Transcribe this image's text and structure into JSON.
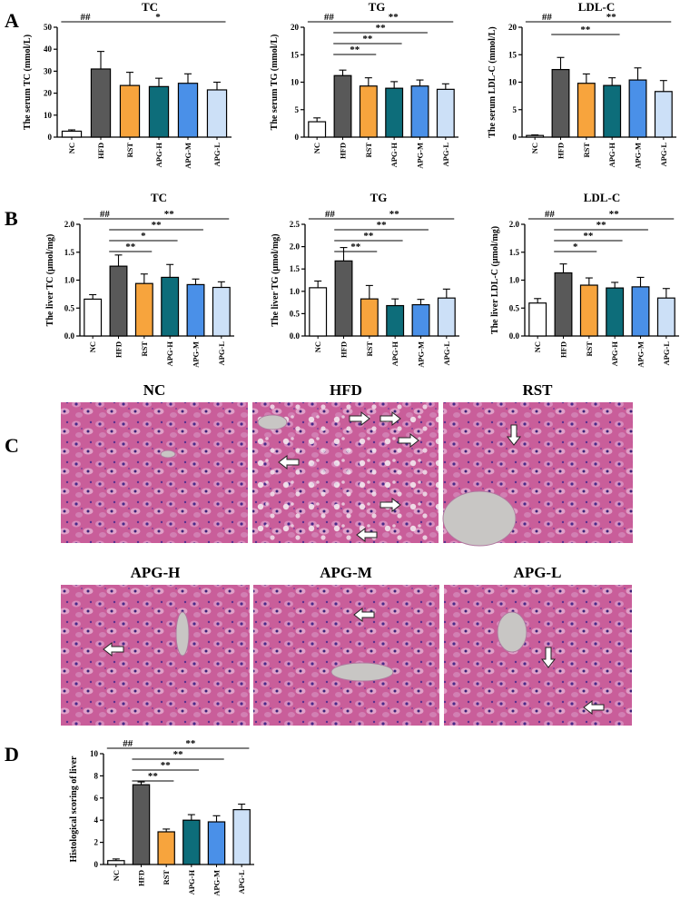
{
  "panels": [
    {
      "letter": "A"
    },
    {
      "letter": "B"
    },
    {
      "letter": "C"
    },
    {
      "letter": "D"
    }
  ],
  "colors": {
    "NC": "#ffffff",
    "HFD": "#595959",
    "RST": "#f7a43d",
    "APG-H": "#0d6d7a",
    "APG-M": "#4a90e8",
    "APG-L": "#cce0f7"
  },
  "chart_data": [
    {
      "type": "bar",
      "panel": "A",
      "title": "TC",
      "ylabel": "The serum TC (mmol/L)",
      "categories": [
        "NC",
        "HFD",
        "RST",
        "APG-H",
        "APG-M",
        "APG-L"
      ],
      "values": [
        2.7,
        31.0,
        23.5,
        23.0,
        24.5,
        21.5
      ],
      "errors": [
        0.6,
        8.0,
        6.0,
        3.8,
        4.3,
        3.5
      ],
      "ylim": [
        0,
        50
      ],
      "yticks": [
        "0",
        "10",
        "20",
        "30",
        "40",
        "50"
      ],
      "significance": [
        {
          "from": 0,
          "to": 1,
          "label": "##"
        },
        {
          "from": 1,
          "to": 5,
          "label": "*"
        }
      ]
    },
    {
      "type": "bar",
      "panel": "A",
      "title": "TG",
      "ylabel": "The serum TG (mmol/L)",
      "categories": [
        "NC",
        "HFD",
        "RST",
        "APG-H",
        "APG-M",
        "APG-L"
      ],
      "values": [
        2.8,
        11.2,
        9.3,
        8.9,
        9.3,
        8.7
      ],
      "errors": [
        0.7,
        1.0,
        1.5,
        1.2,
        1.1,
        1.0
      ],
      "ylim": [
        0,
        20
      ],
      "yticks": [
        "0",
        "5",
        "10",
        "15",
        "20"
      ],
      "significance": [
        {
          "from": 0,
          "to": 1,
          "label": "##"
        },
        {
          "from": 1,
          "to": 5,
          "label": "**"
        },
        {
          "from": 1,
          "to": 4,
          "label": "**"
        },
        {
          "from": 1,
          "to": 3,
          "label": "**"
        },
        {
          "from": 1,
          "to": 2,
          "label": "**"
        }
      ]
    },
    {
      "type": "bar",
      "panel": "A",
      "title": "LDL-C",
      "ylabel": "The serum LDL-C (mmol/L)",
      "categories": [
        "NC",
        "HFD",
        "RST",
        "APG-H",
        "APG-M",
        "APG-L"
      ],
      "values": [
        0.3,
        12.3,
        9.8,
        9.4,
        10.4,
        8.3
      ],
      "errors": [
        0.1,
        2.2,
        1.7,
        1.4,
        2.2,
        2.0
      ],
      "ylim": [
        0,
        20
      ],
      "yticks": [
        "0",
        "5",
        "10",
        "15",
        "20"
      ],
      "significance": [
        {
          "from": 0,
          "to": 1,
          "label": "##"
        },
        {
          "from": 1,
          "to": 5,
          "label": "**"
        },
        {
          "from": 1,
          "to": 3,
          "label": "**"
        }
      ]
    },
    {
      "type": "bar",
      "panel": "B",
      "title": "TC",
      "ylabel": "The liver TC (μmol/mg)",
      "categories": [
        "NC",
        "HFD",
        "RST",
        "APG-H",
        "APG-M",
        "APG-L"
      ],
      "values": [
        0.66,
        1.25,
        0.94,
        1.05,
        0.92,
        0.87
      ],
      "errors": [
        0.08,
        0.2,
        0.17,
        0.23,
        0.1,
        0.1
      ],
      "ylim": [
        0,
        2.0
      ],
      "yticks": [
        "0.0",
        "0.5",
        "1.0",
        "1.5",
        "2.0"
      ],
      "significance": [
        {
          "from": 0,
          "to": 1,
          "label": "##"
        },
        {
          "from": 1,
          "to": 5,
          "label": "**"
        },
        {
          "from": 1,
          "to": 4,
          "label": "**"
        },
        {
          "from": 1,
          "to": 3,
          "label": "*"
        },
        {
          "from": 1,
          "to": 2,
          "label": "**"
        }
      ]
    },
    {
      "type": "bar",
      "panel": "B",
      "title": "TG",
      "ylabel": "The liver TG (μmol/mg)",
      "categories": [
        "NC",
        "HFD",
        "RST",
        "APG-H",
        "APG-M",
        "APG-L"
      ],
      "values": [
        1.08,
        1.68,
        0.83,
        0.68,
        0.7,
        0.85
      ],
      "errors": [
        0.15,
        0.3,
        0.3,
        0.15,
        0.12,
        0.2
      ],
      "ylim": [
        0,
        2.5
      ],
      "yticks": [
        "0.0",
        "0.5",
        "1.0",
        "1.5",
        "2.0",
        "2.5"
      ],
      "significance": [
        {
          "from": 0,
          "to": 1,
          "label": "##"
        },
        {
          "from": 1,
          "to": 5,
          "label": "**"
        },
        {
          "from": 1,
          "to": 4,
          "label": "**"
        },
        {
          "from": 1,
          "to": 3,
          "label": "**"
        },
        {
          "from": 1,
          "to": 2,
          "label": "**"
        }
      ]
    },
    {
      "type": "bar",
      "panel": "B",
      "title": "LDL-C",
      "ylabel": "The liver LDL-C (μmol/mg)",
      "categories": [
        "NC",
        "HFD",
        "RST",
        "APG-H",
        "APG-M",
        "APG-L"
      ],
      "values": [
        0.59,
        1.13,
        0.91,
        0.86,
        0.88,
        0.68
      ],
      "errors": [
        0.08,
        0.16,
        0.13,
        0.1,
        0.17,
        0.17
      ],
      "ylim": [
        0,
        2.0
      ],
      "yticks": [
        "0.0",
        "0.5",
        "1.0",
        "1.5",
        "2.0"
      ],
      "significance": [
        {
          "from": 0,
          "to": 1,
          "label": "##"
        },
        {
          "from": 1,
          "to": 5,
          "label": "**"
        },
        {
          "from": 1,
          "to": 4,
          "label": "**"
        },
        {
          "from": 1,
          "to": 3,
          "label": "**"
        },
        {
          "from": 1,
          "to": 2,
          "label": "*"
        }
      ]
    },
    {
      "type": "bar",
      "panel": "D",
      "title": "",
      "ylabel": "Histological scoring of liver",
      "categories": [
        "NC",
        "HFD",
        "RST",
        "APG-H",
        "APG-M",
        "APG-L"
      ],
      "values": [
        0.35,
        7.2,
        2.95,
        4.0,
        3.85,
        4.95
      ],
      "errors": [
        0.15,
        0.25,
        0.25,
        0.5,
        0.55,
        0.5
      ],
      "ylim": [
        0,
        10
      ],
      "yticks": [
        "0",
        "2",
        "4",
        "6",
        "8",
        "10"
      ],
      "significance": [
        {
          "from": 0,
          "to": 1,
          "label": "##"
        },
        {
          "from": 1,
          "to": 5,
          "label": "**"
        },
        {
          "from": 1,
          "to": 4,
          "label": "**"
        },
        {
          "from": 1,
          "to": 3,
          "label": "**"
        },
        {
          "from": 1,
          "to": 2,
          "label": "**"
        }
      ]
    }
  ],
  "histology": [
    {
      "label": "NC",
      "arrows": []
    },
    {
      "label": "HFD",
      "arrows": [
        "right",
        "right",
        "right",
        "left",
        "right",
        "left"
      ]
    },
    {
      "label": "RST",
      "arrows": [
        "down"
      ]
    },
    {
      "label": "APG-H",
      "arrows": [
        "left"
      ]
    },
    {
      "label": "APG-M",
      "arrows": [
        "left"
      ]
    },
    {
      "label": "APG-L",
      "arrows": [
        "down",
        "left"
      ]
    }
  ]
}
